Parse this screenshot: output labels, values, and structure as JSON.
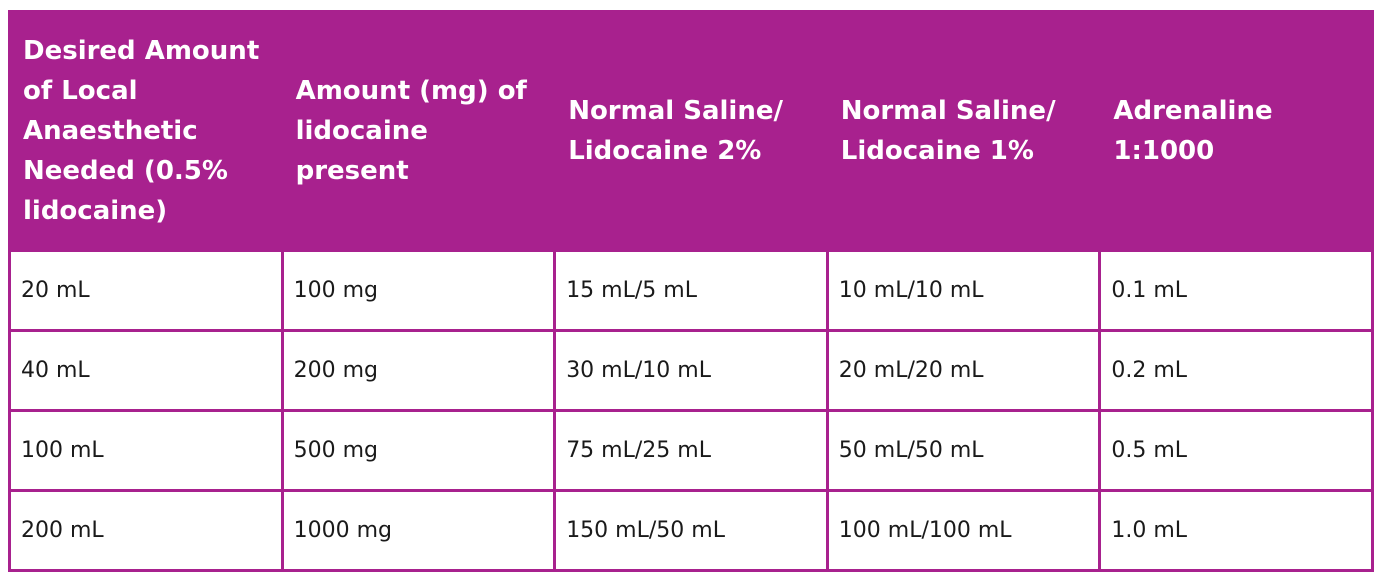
{
  "table": {
    "header": [
      "Desired Amount of Local Anaesthetic Needed (0.5% lidocaine)",
      "Amount (mg) of lidocaine present",
      "Normal Saline/ Lidocaine 2%",
      "Normal Saline/ Lidocaine 1%",
      "Adrenaline 1:1000"
    ],
    "rows": [
      [
        "20 mL",
        "100 mg",
        "15 mL/5 mL",
        "10 mL/10 mL",
        "0.1 mL"
      ],
      [
        "40 mL",
        "200 mg",
        "30 mL/10 mL",
        "20 mL/20 mL",
        "0.2 mL"
      ],
      [
        "100 mL",
        "500 mg",
        "75 mL/25 mL",
        "50 mL/50 mL",
        "0.5 mL"
      ],
      [
        "200 mL",
        "1000 mg",
        "150 mL/50 mL",
        "100 mL/100 mL",
        "1.0 mL"
      ]
    ]
  }
}
